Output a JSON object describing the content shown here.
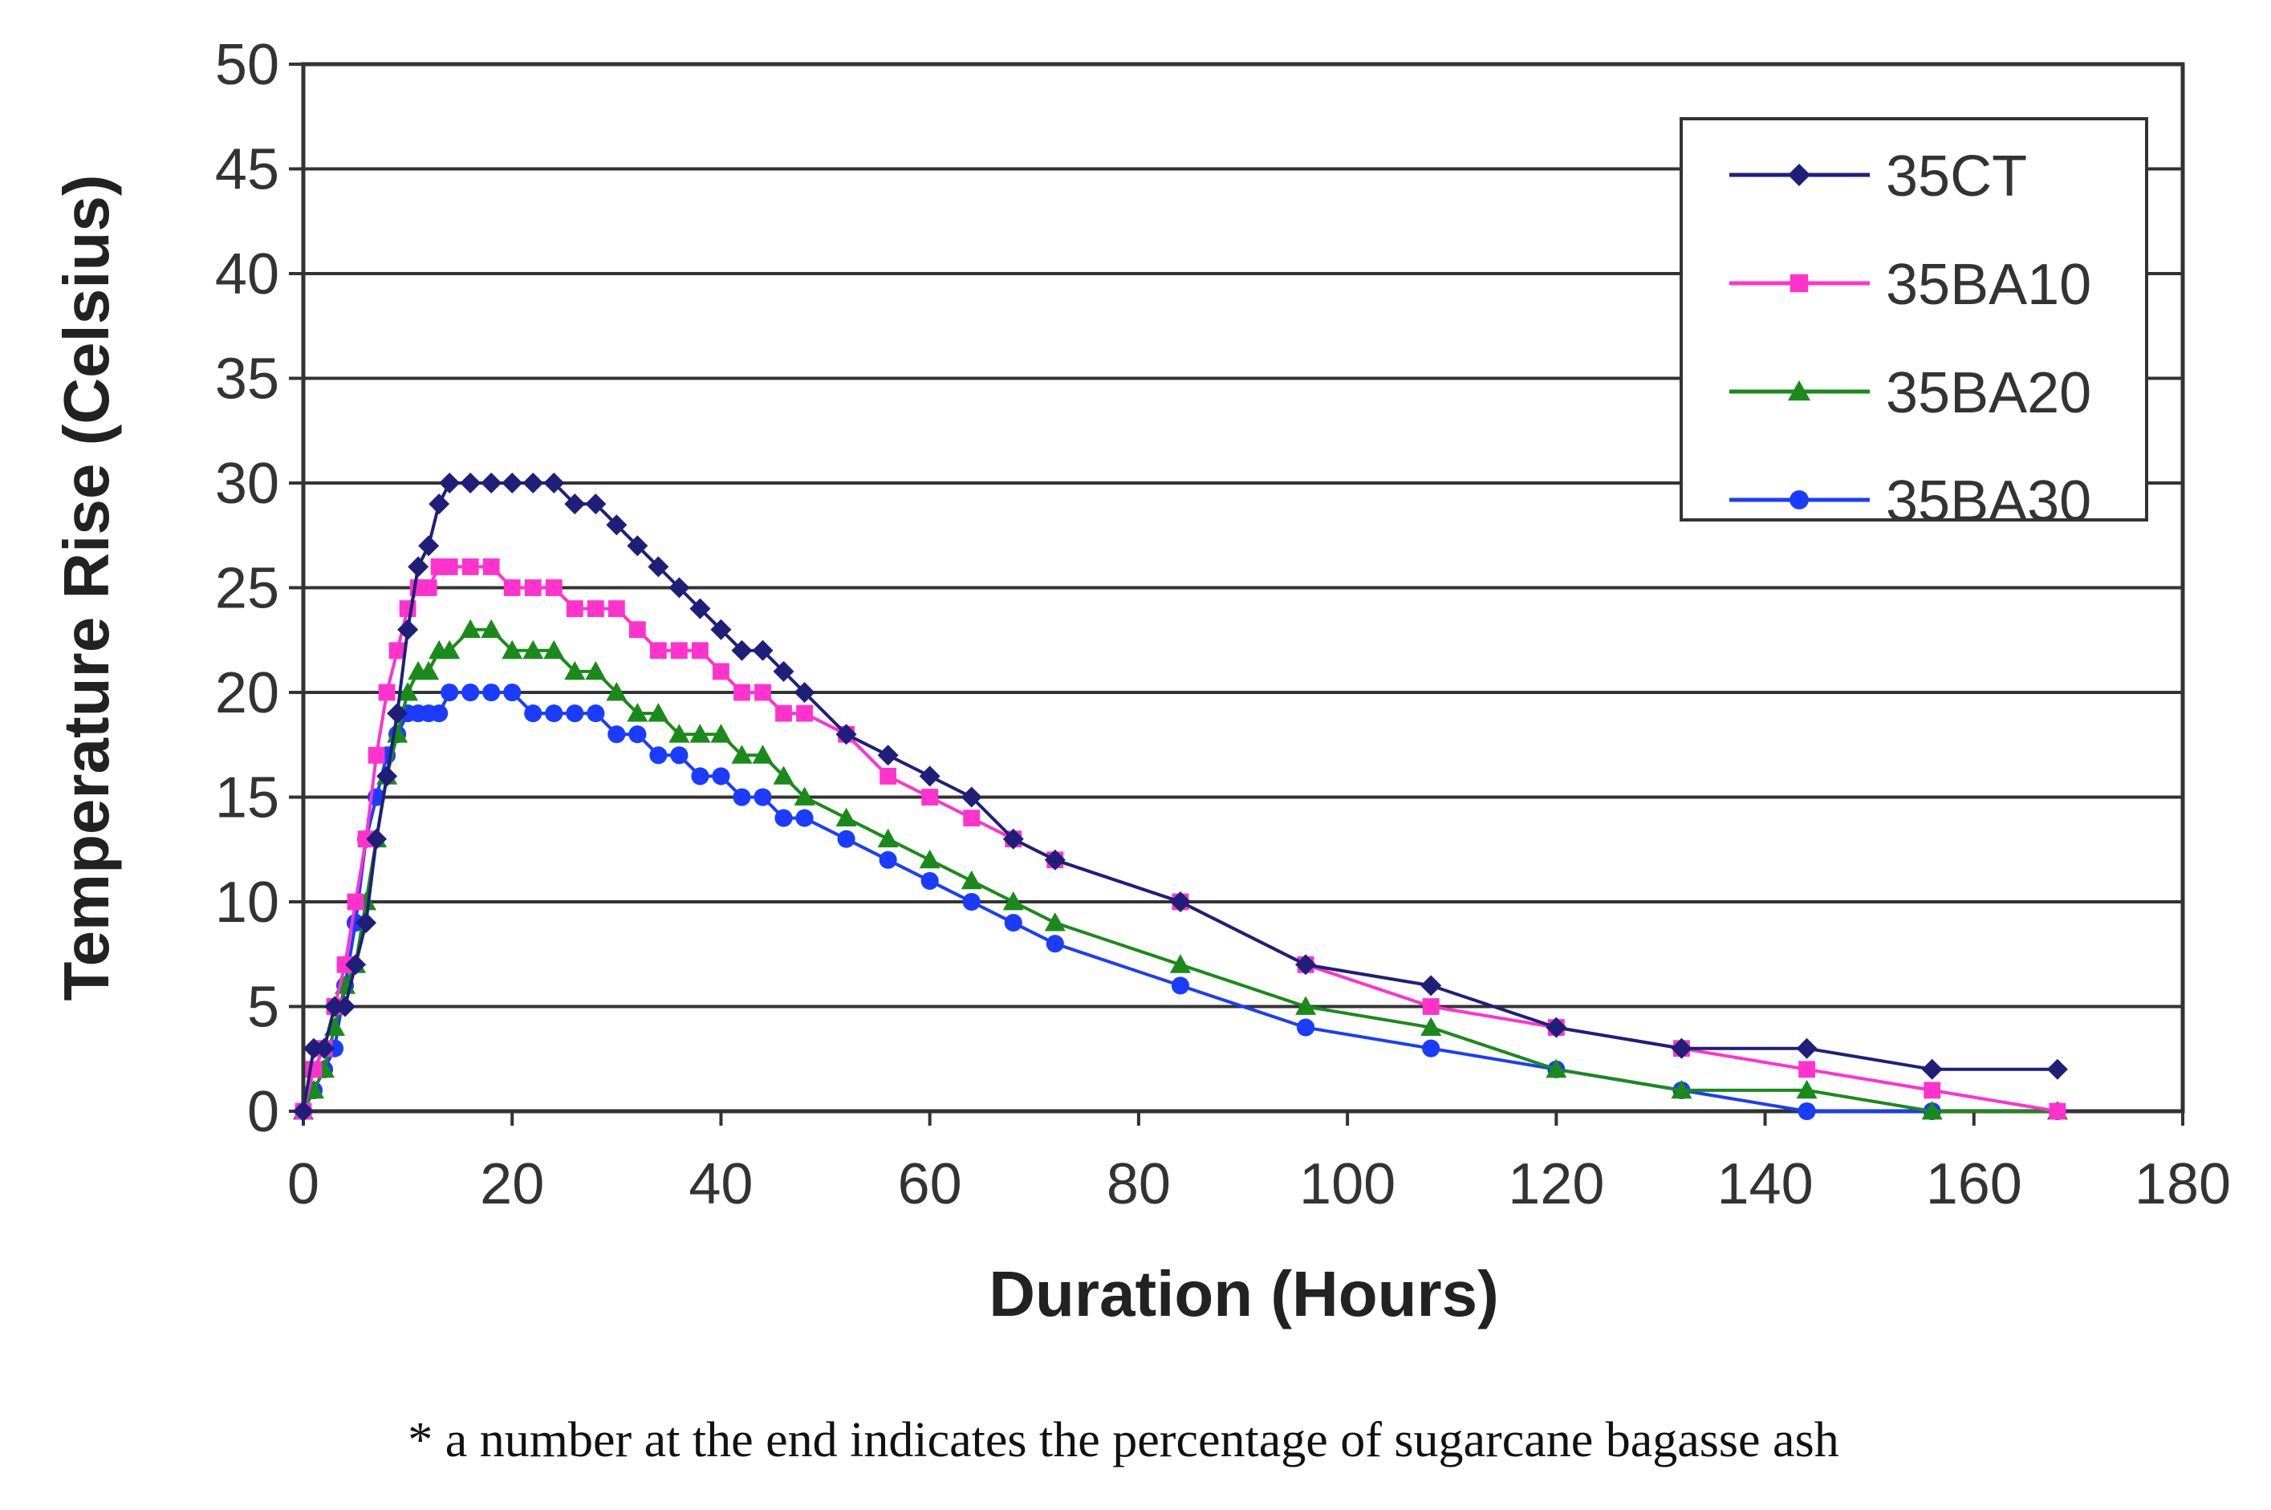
{
  "chart_data": {
    "type": "line",
    "title": "",
    "xlabel": "Duration (Hours)",
    "ylabel": "Temperature Rise (Celsius)",
    "xlim": [
      0,
      180
    ],
    "ylim": [
      0,
      50
    ],
    "xticks": [
      "0",
      "20",
      "40",
      "60",
      "80",
      "100",
      "120",
      "140",
      "160",
      "180"
    ],
    "yticks": [
      "0",
      "5",
      "10",
      "15",
      "20",
      "25",
      "30",
      "35",
      "40",
      "45",
      "50"
    ],
    "grid": "horizontal",
    "legend_position": "top-right",
    "series": [
      {
        "name": "35CT",
        "color": "#1f1f7a",
        "marker": "diamond",
        "points": [
          [
            0,
            0
          ],
          [
            1,
            3
          ],
          [
            2,
            3
          ],
          [
            3,
            5
          ],
          [
            4,
            5
          ],
          [
            5,
            7
          ],
          [
            6,
            9
          ],
          [
            7,
            13
          ],
          [
            8,
            16
          ],
          [
            9,
            19
          ],
          [
            10,
            23
          ],
          [
            11,
            26
          ],
          [
            12,
            27
          ],
          [
            13,
            29
          ],
          [
            14,
            30
          ],
          [
            16,
            30
          ],
          [
            18,
            30
          ],
          [
            20,
            30
          ],
          [
            22,
            30
          ],
          [
            24,
            30
          ],
          [
            26,
            29
          ],
          [
            28,
            29
          ],
          [
            30,
            28
          ],
          [
            32,
            27
          ],
          [
            34,
            26
          ],
          [
            36,
            25
          ],
          [
            38,
            24
          ],
          [
            40,
            23
          ],
          [
            42,
            22
          ],
          [
            44,
            22
          ],
          [
            46,
            21
          ],
          [
            48,
            20
          ],
          [
            52,
            18
          ],
          [
            56,
            17
          ],
          [
            60,
            16
          ],
          [
            64,
            15
          ],
          [
            68,
            13
          ],
          [
            72,
            12
          ],
          [
            84,
            10
          ],
          [
            96,
            7
          ],
          [
            108,
            6
          ],
          [
            120,
            4
          ],
          [
            132,
            3
          ],
          [
            144,
            3
          ],
          [
            156,
            2
          ],
          [
            168,
            2
          ]
        ]
      },
      {
        "name": "35BA10",
        "color": "#ff33cc",
        "marker": "square",
        "points": [
          [
            0,
            0
          ],
          [
            1,
            2
          ],
          [
            2,
            3
          ],
          [
            3,
            5
          ],
          [
            4,
            7
          ],
          [
            5,
            10
          ],
          [
            6,
            13
          ],
          [
            7,
            17
          ],
          [
            8,
            20
          ],
          [
            9,
            22
          ],
          [
            10,
            24
          ],
          [
            11,
            25
          ],
          [
            12,
            25
          ],
          [
            13,
            26
          ],
          [
            14,
            26
          ],
          [
            16,
            26
          ],
          [
            18,
            26
          ],
          [
            20,
            25
          ],
          [
            22,
            25
          ],
          [
            24,
            25
          ],
          [
            26,
            24
          ],
          [
            28,
            24
          ],
          [
            30,
            24
          ],
          [
            32,
            23
          ],
          [
            34,
            22
          ],
          [
            36,
            22
          ],
          [
            38,
            22
          ],
          [
            40,
            21
          ],
          [
            42,
            20
          ],
          [
            44,
            20
          ],
          [
            46,
            19
          ],
          [
            48,
            19
          ],
          [
            52,
            18
          ],
          [
            56,
            16
          ],
          [
            60,
            15
          ],
          [
            64,
            14
          ],
          [
            68,
            13
          ],
          [
            72,
            12
          ],
          [
            84,
            10
          ],
          [
            96,
            7
          ],
          [
            108,
            5
          ],
          [
            120,
            4
          ],
          [
            132,
            3
          ],
          [
            144,
            2
          ],
          [
            156,
            1
          ],
          [
            168,
            0
          ]
        ]
      },
      {
        "name": "35BA20",
        "color": "#1a8a1a",
        "marker": "triangle",
        "points": [
          [
            0,
            0
          ],
          [
            1,
            1
          ],
          [
            2,
            2
          ],
          [
            3,
            4
          ],
          [
            4,
            6
          ],
          [
            5,
            7
          ],
          [
            6,
            10
          ],
          [
            7,
            13
          ],
          [
            8,
            16
          ],
          [
            9,
            18
          ],
          [
            10,
            20
          ],
          [
            11,
            21
          ],
          [
            12,
            21
          ],
          [
            13,
            22
          ],
          [
            14,
            22
          ],
          [
            16,
            23
          ],
          [
            18,
            23
          ],
          [
            20,
            22
          ],
          [
            22,
            22
          ],
          [
            24,
            22
          ],
          [
            26,
            21
          ],
          [
            28,
            21
          ],
          [
            30,
            20
          ],
          [
            32,
            19
          ],
          [
            34,
            19
          ],
          [
            36,
            18
          ],
          [
            38,
            18
          ],
          [
            40,
            18
          ],
          [
            42,
            17
          ],
          [
            44,
            17
          ],
          [
            46,
            16
          ],
          [
            48,
            15
          ],
          [
            52,
            14
          ],
          [
            56,
            13
          ],
          [
            60,
            12
          ],
          [
            64,
            11
          ],
          [
            68,
            10
          ],
          [
            72,
            9
          ],
          [
            84,
            7
          ],
          [
            96,
            5
          ],
          [
            108,
            4
          ],
          [
            120,
            2
          ],
          [
            132,
            1
          ],
          [
            144,
            1
          ],
          [
            156,
            0
          ],
          [
            168,
            0
          ]
        ]
      },
      {
        "name": "35BA30",
        "color": "#1a3cff",
        "marker": "circle",
        "points": [
          [
            0,
            0
          ],
          [
            1,
            1
          ],
          [
            2,
            2
          ],
          [
            3,
            3
          ],
          [
            4,
            6
          ],
          [
            5,
            9
          ],
          [
            6,
            13
          ],
          [
            7,
            15
          ],
          [
            8,
            17
          ],
          [
            9,
            18
          ],
          [
            10,
            19
          ],
          [
            11,
            19
          ],
          [
            12,
            19
          ],
          [
            13,
            19
          ],
          [
            14,
            20
          ],
          [
            16,
            20
          ],
          [
            18,
            20
          ],
          [
            20,
            20
          ],
          [
            22,
            19
          ],
          [
            24,
            19
          ],
          [
            26,
            19
          ],
          [
            28,
            19
          ],
          [
            30,
            18
          ],
          [
            32,
            18
          ],
          [
            34,
            17
          ],
          [
            36,
            17
          ],
          [
            38,
            16
          ],
          [
            40,
            16
          ],
          [
            42,
            15
          ],
          [
            44,
            15
          ],
          [
            46,
            14
          ],
          [
            48,
            14
          ],
          [
            52,
            13
          ],
          [
            56,
            12
          ],
          [
            60,
            11
          ],
          [
            64,
            10
          ],
          [
            68,
            9
          ],
          [
            72,
            8
          ],
          [
            84,
            6
          ],
          [
            96,
            4
          ],
          [
            108,
            3
          ],
          [
            120,
            2
          ],
          [
            132,
            1
          ],
          [
            144,
            0
          ],
          [
            156,
            0
          ],
          [
            168,
            0
          ]
        ]
      }
    ]
  },
  "footnote": "* a number at the end indicates the percentage of sugarcane bagasse ash"
}
